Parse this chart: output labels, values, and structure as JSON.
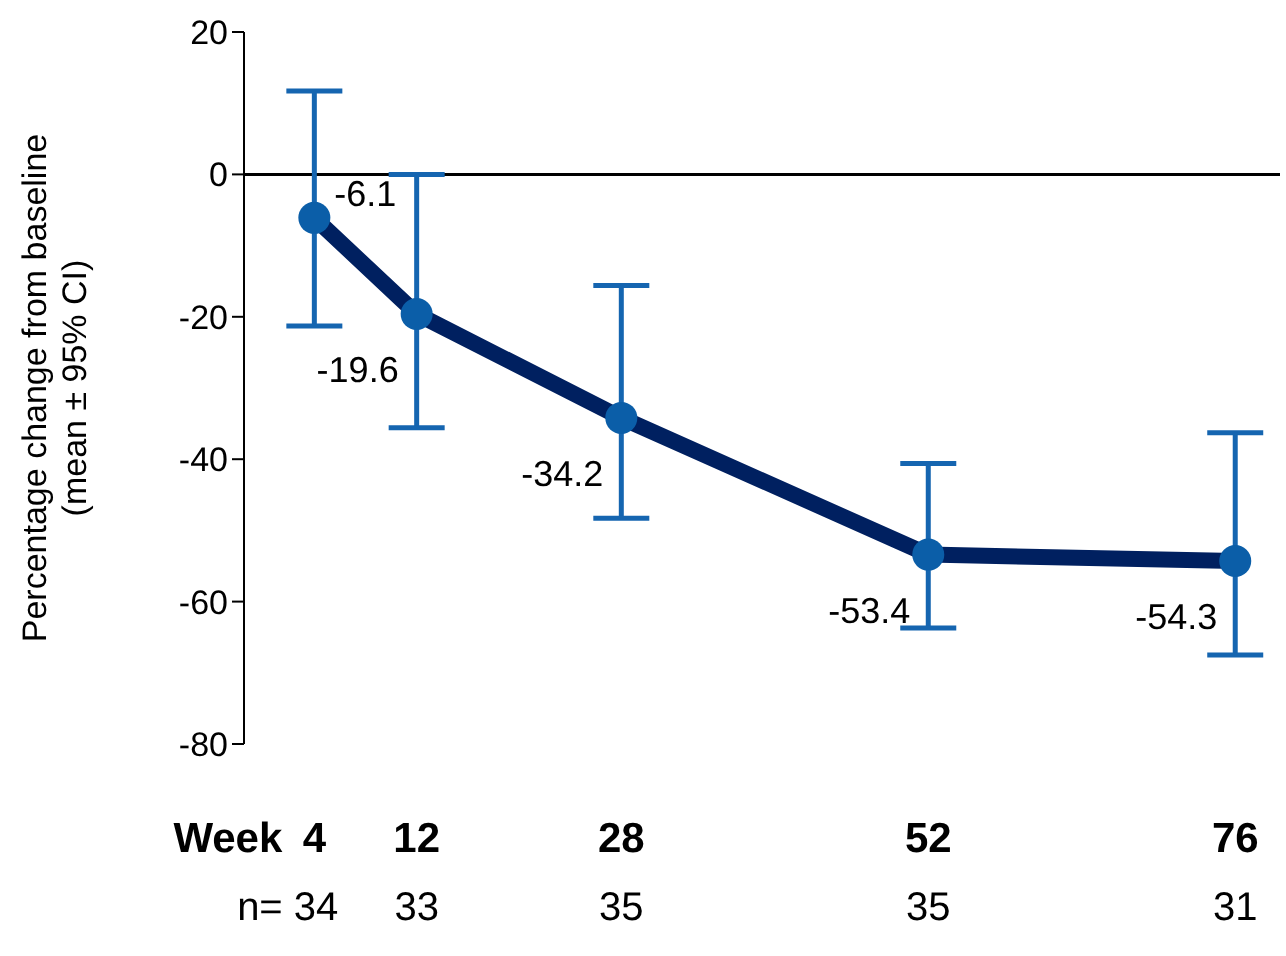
{
  "chart_data": {
    "type": "line",
    "ylabel": "Percentage change from baseline\n(mean ± 95% CI)",
    "xlabel": "Week",
    "x": [
      4,
      12,
      28,
      52,
      76
    ],
    "series": [
      {
        "color": "#002060",
        "colors": [
          "#0b5ea8",
          "#0b5ea8",
          "#0b5ea8",
          "#0b5ea8",
          "#0b5ea8"
        ],
        "values": [
          -6.1,
          -19.6,
          -34.2,
          -53.4,
          -54.3
        ],
        "errors": [
          [
            -21.3,
            11.7
          ],
          [
            -35.6,
            0
          ],
          [
            -48.3,
            -15.6
          ],
          [
            -63.7,
            -40.6
          ],
          [
            -67.5,
            -36.3
          ]
        ]
      }
    ],
    "data_labels": true,
    "marker": "circle",
    "xlim": [
      -1.5,
      79.5
    ],
    "xticks": [
      4,
      12,
      28,
      52,
      76
    ],
    "ylim": [
      -80,
      20
    ],
    "yticks": [
      -80,
      -60,
      -40,
      -20,
      0,
      20
    ],
    "ref_lines": [
      {
        "axis": "y",
        "value": 0,
        "color": "#000000"
      }
    ],
    "annotations": [
      "n= 34",
      "33",
      "35",
      "35",
      "31"
    ]
  }
}
